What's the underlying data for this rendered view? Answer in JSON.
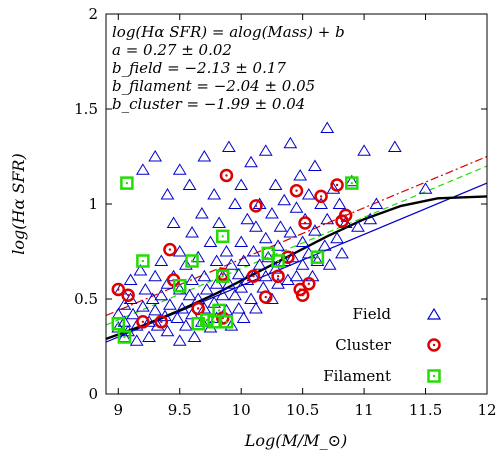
{
  "chart_data": {
    "type": "scatter",
    "title": "",
    "xlabel": "Log(M/M_⊙)",
    "ylabel": "log(Hα SFR)",
    "xlim": [
      8.9,
      12
    ],
    "ylim": [
      0,
      2
    ],
    "xticks": [
      "9",
      "9.5",
      "10",
      "10.5",
      "11",
      "11.5",
      "12"
    ],
    "yticks": [
      "0",
      "0.5",
      "1",
      "1.5",
      "2"
    ],
    "xtick_values": [
      9,
      9.5,
      10,
      10.5,
      11,
      11.5,
      12
    ],
    "ytick_values": [
      0,
      0.5,
      1,
      1.5,
      2
    ],
    "legend_position": "bottom-right",
    "annotations": [
      "log(Hα SFR) = alog(Mass) + b",
      "a = 0.27 ± 0.02",
      "b_field = −2.13 ± 0.17",
      "b_filament = −2.04 ± 0.05",
      "b_cluster = −1.99 ± 0.04"
    ],
    "series": [
      {
        "name": "Field",
        "marker": "triangle",
        "color": "#0000cc",
        "points": [
          [
            9.0,
            0.35
          ],
          [
            9.0,
            0.42
          ],
          [
            9.02,
            0.55
          ],
          [
            9.05,
            0.3
          ],
          [
            9.05,
            0.38
          ],
          [
            9.05,
            0.47
          ],
          [
            9.08,
            0.33
          ],
          [
            9.1,
            0.6
          ],
          [
            9.1,
            0.5
          ],
          [
            9.12,
            0.42
          ],
          [
            9.15,
            0.36
          ],
          [
            9.15,
            0.28
          ],
          [
            9.18,
            0.65
          ],
          [
            9.2,
            1.18
          ],
          [
            9.2,
            0.46
          ],
          [
            9.22,
            0.55
          ],
          [
            9.25,
            0.38
          ],
          [
            9.25,
            0.3
          ],
          [
            9.28,
            0.5
          ],
          [
            9.3,
            1.25
          ],
          [
            9.3,
            0.62
          ],
          [
            9.3,
            0.44
          ],
          [
            9.32,
            0.36
          ],
          [
            9.35,
            0.7
          ],
          [
            9.35,
            0.52
          ],
          [
            9.38,
            0.41
          ],
          [
            9.4,
            1.05
          ],
          [
            9.4,
            0.58
          ],
          [
            9.4,
            0.33
          ],
          [
            9.42,
            0.47
          ],
          [
            9.45,
            0.9
          ],
          [
            9.45,
            0.62
          ],
          [
            9.48,
            0.4
          ],
          [
            9.5,
            1.18
          ],
          [
            9.5,
            0.75
          ],
          [
            9.5,
            0.55
          ],
          [
            9.5,
            0.28
          ],
          [
            9.52,
            0.45
          ],
          [
            9.55,
            0.68
          ],
          [
            9.55,
            0.36
          ],
          [
            9.58,
            1.1
          ],
          [
            9.58,
            0.52
          ],
          [
            9.6,
            0.85
          ],
          [
            9.6,
            0.6
          ],
          [
            9.6,
            0.42
          ],
          [
            9.62,
            0.3
          ],
          [
            9.65,
            0.72
          ],
          [
            9.65,
            0.5
          ],
          [
            9.68,
            0.95
          ],
          [
            9.68,
            0.38
          ],
          [
            9.7,
            1.25
          ],
          [
            9.7,
            0.62
          ],
          [
            9.7,
            0.45
          ],
          [
            9.72,
            0.55
          ],
          [
            9.75,
            0.8
          ],
          [
            9.75,
            0.35
          ],
          [
            9.78,
            1.05
          ],
          [
            9.78,
            0.48
          ],
          [
            9.8,
            0.7
          ],
          [
            9.8,
            0.58
          ],
          [
            9.8,
            0.4
          ],
          [
            9.82,
            0.9
          ],
          [
            9.85,
            0.52
          ],
          [
            9.85,
            0.62
          ],
          [
            9.88,
            0.75
          ],
          [
            9.88,
            0.44
          ],
          [
            9.9,
            1.3
          ],
          [
            9.9,
            0.58
          ],
          [
            9.92,
            0.68
          ],
          [
            9.92,
            0.36
          ],
          [
            9.95,
            1.0
          ],
          [
            9.95,
            0.52
          ],
          [
            9.98,
            0.63
          ],
          [
            9.98,
            0.45
          ],
          [
            10.0,
            1.1
          ],
          [
            10.0,
            0.8
          ],
          [
            10.0,
            0.56
          ],
          [
            10.02,
            0.7
          ],
          [
            10.02,
            0.4
          ],
          [
            10.05,
            0.92
          ],
          [
            10.05,
            0.6
          ],
          [
            10.08,
            1.22
          ],
          [
            10.08,
            0.5
          ],
          [
            10.1,
            0.75
          ],
          [
            10.1,
            0.62
          ],
          [
            10.12,
            0.88
          ],
          [
            10.12,
            0.45
          ],
          [
            10.15,
            1.0
          ],
          [
            10.15,
            0.68
          ],
          [
            10.18,
            0.56
          ],
          [
            10.2,
            1.28
          ],
          [
            10.2,
            0.82
          ],
          [
            10.2,
            0.62
          ],
          [
            10.22,
            0.72
          ],
          [
            10.25,
            0.95
          ],
          [
            10.25,
            0.5
          ],
          [
            10.28,
            1.1
          ],
          [
            10.28,
            0.66
          ],
          [
            10.3,
            0.78
          ],
          [
            10.3,
            0.58
          ],
          [
            10.32,
            0.88
          ],
          [
            10.35,
            1.02
          ],
          [
            10.35,
            0.7
          ],
          [
            10.38,
            0.6
          ],
          [
            10.4,
            1.32
          ],
          [
            10.4,
            0.85
          ],
          [
            10.42,
            0.72
          ],
          [
            10.45,
            0.98
          ],
          [
            10.45,
            0.62
          ],
          [
            10.48,
            1.15
          ],
          [
            10.5,
            0.8
          ],
          [
            10.5,
            0.68
          ],
          [
            10.52,
            0.92
          ],
          [
            10.55,
            1.05
          ],
          [
            10.55,
            0.74
          ],
          [
            10.58,
            0.62
          ],
          [
            10.6,
            1.2
          ],
          [
            10.6,
            0.86
          ],
          [
            10.62,
            0.7
          ],
          [
            10.65,
            1.0
          ],
          [
            10.68,
            0.78
          ],
          [
            10.7,
            1.4
          ],
          [
            10.7,
            0.92
          ],
          [
            10.72,
            0.68
          ],
          [
            10.75,
            1.08
          ],
          [
            10.78,
            0.82
          ],
          [
            10.8,
            1.0
          ],
          [
            10.82,
            0.74
          ],
          [
            10.85,
            0.9
          ],
          [
            10.9,
            1.12
          ],
          [
            10.95,
            0.88
          ],
          [
            11.0,
            1.28
          ],
          [
            11.05,
            0.92
          ],
          [
            11.1,
            1.0
          ],
          [
            11.25,
            1.3
          ],
          [
            11.5,
            1.08
          ]
        ]
      },
      {
        "name": "Cluster",
        "marker": "circle",
        "color": "#dd0000",
        "points": [
          [
            9.0,
            0.55
          ],
          [
            9.08,
            0.52
          ],
          [
            9.2,
            0.38
          ],
          [
            9.35,
            0.38
          ],
          [
            9.42,
            0.76
          ],
          [
            9.45,
            0.6
          ],
          [
            9.65,
            0.45
          ],
          [
            9.85,
            0.4
          ],
          [
            9.85,
            0.63
          ],
          [
            9.88,
            1.15
          ],
          [
            10.1,
            0.62
          ],
          [
            10.12,
            0.99
          ],
          [
            10.2,
            0.51
          ],
          [
            10.3,
            0.62
          ],
          [
            10.38,
            0.72
          ],
          [
            10.45,
            1.07
          ],
          [
            10.48,
            0.55
          ],
          [
            10.5,
            0.52
          ],
          [
            10.52,
            0.9
          ],
          [
            10.55,
            0.58
          ],
          [
            10.65,
            1.04
          ],
          [
            10.78,
            1.1
          ],
          [
            10.82,
            0.91
          ],
          [
            10.85,
            0.94
          ]
        ]
      },
      {
        "name": "Filament",
        "marker": "square",
        "color": "#22dd00",
        "points": [
          [
            9.0,
            0.37
          ],
          [
            9.05,
            0.3
          ],
          [
            9.07,
            1.11
          ],
          [
            9.2,
            0.7
          ],
          [
            9.5,
            0.57
          ],
          [
            9.6,
            0.7
          ],
          [
            9.65,
            0.37
          ],
          [
            9.72,
            0.39
          ],
          [
            9.78,
            0.38
          ],
          [
            9.82,
            0.44
          ],
          [
            9.85,
            0.83
          ],
          [
            9.85,
            0.62
          ],
          [
            9.88,
            0.38
          ],
          [
            10.22,
            0.74
          ],
          [
            10.3,
            0.7
          ],
          [
            10.62,
            0.72
          ],
          [
            10.9,
            1.11
          ]
        ]
      }
    ],
    "fit_lines": [
      {
        "id": "cluster-fit",
        "color": "#dd0000",
        "dash": "dashdot",
        "x": [
          8.9,
          12
        ],
        "y": [
          0.413,
          1.25
        ]
      },
      {
        "id": "filament-fit",
        "color": "#22dd00",
        "dash": "dashed",
        "x": [
          8.9,
          12
        ],
        "y": [
          0.363,
          1.2
        ]
      },
      {
        "id": "field-fit",
        "color": "#0000cc",
        "dash": "solid",
        "x": [
          8.9,
          12
        ],
        "y": [
          0.273,
          1.11
        ]
      },
      {
        "id": "black-curve",
        "color": "#000000",
        "dash": "solid",
        "thick": true,
        "x": [
          8.9,
          9.2,
          9.5,
          9.8,
          10.1,
          10.4,
          10.7,
          11.0,
          11.3,
          11.6,
          12.0
        ],
        "y": [
          0.29,
          0.36,
          0.44,
          0.53,
          0.63,
          0.73,
          0.83,
          0.92,
          0.99,
          1.03,
          1.04
        ]
      }
    ]
  }
}
